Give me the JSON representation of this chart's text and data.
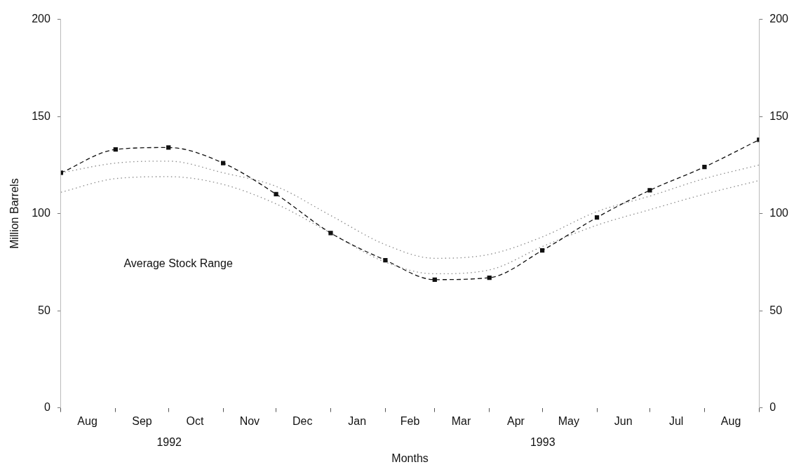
{
  "chart_data": {
    "type": "line",
    "xlabel": "Months",
    "ylabel": "Million Barrels",
    "x": [
      "1992-08-01",
      "1992-09-01",
      "1992-10-01",
      "1992-11-01",
      "1992-12-01",
      "1993-01-01",
      "1993-02-01",
      "1993-03-01",
      "1993-04-01",
      "1993-05-01",
      "1993-06-01",
      "1993-07-01",
      "1993-08-01",
      "1993-09-01"
    ],
    "xlim": [
      "1992-08-01",
      "1993-09-01"
    ],
    "xticks": [
      {
        "value": "1992-08-01",
        "label": null
      },
      {
        "value": "1992-08-16",
        "label": "Aug"
      },
      {
        "value": "1992-09-01",
        "label": null
      },
      {
        "value": "1992-09-16",
        "label": "Sep"
      },
      {
        "value": "1992-10-01",
        "label": null
      },
      {
        "value": "1992-10-16",
        "label": "Oct"
      },
      {
        "value": "1992-11-01",
        "label": null
      },
      {
        "value": "1992-11-16",
        "label": "Nov"
      },
      {
        "value": "1992-12-01",
        "label": null
      },
      {
        "value": "1992-12-16",
        "label": "Dec"
      },
      {
        "value": "1993-01-01",
        "label": null
      },
      {
        "value": "1993-01-16",
        "label": "Jan"
      },
      {
        "value": "1993-02-01",
        "label": null
      },
      {
        "value": "1993-02-15",
        "label": "Feb"
      },
      {
        "value": "1993-03-01",
        "label": null
      },
      {
        "value": "1993-03-16",
        "label": "Mar"
      },
      {
        "value": "1993-04-01",
        "label": null
      },
      {
        "value": "1993-04-16",
        "label": "Apr"
      },
      {
        "value": "1993-05-01",
        "label": null
      },
      {
        "value": "1993-05-16",
        "label": "May"
      },
      {
        "value": "1993-06-01",
        "label": null
      },
      {
        "value": "1993-06-16",
        "label": "Jun"
      },
      {
        "value": "1993-07-01",
        "label": null
      },
      {
        "value": "1993-07-16",
        "label": "Jul"
      },
      {
        "value": "1993-08-01",
        "label": null
      },
      {
        "value": "1993-08-16",
        "label": "Aug"
      },
      {
        "value": "1993-09-01",
        "label": null
      }
    ],
    "ylim": [
      0,
      200
    ],
    "yticks": [
      0,
      50,
      100,
      150,
      200
    ],
    "y2lim": [
      0,
      200
    ],
    "y2ticks": [
      0,
      50,
      100,
      150,
      200
    ],
    "grid": false,
    "legend": false,
    "series": [
      {
        "color": "#111111",
        "marker": "square",
        "line_style": "dashed",
        "values": [
          121,
          133,
          134,
          126,
          110,
          90,
          76,
          66,
          67,
          81,
          98,
          112,
          124,
          138
        ]
      },
      {
        "color": "#8a8a8a",
        "marker": "none",
        "line_style": "dotted",
        "values": [
          121,
          126,
          127,
          121,
          114,
          99,
          84,
          77,
          79,
          88,
          101,
          109,
          118,
          125
        ]
      },
      {
        "color": "#8a8a8a",
        "marker": "none",
        "line_style": "dotted",
        "values": [
          111,
          118,
          119,
          115,
          105,
          90,
          75,
          69,
          71,
          83,
          94,
          102,
          110,
          117
        ]
      }
    ],
    "annotations": [
      "Average Stock Range",
      "1992",
      "1993"
    ]
  }
}
